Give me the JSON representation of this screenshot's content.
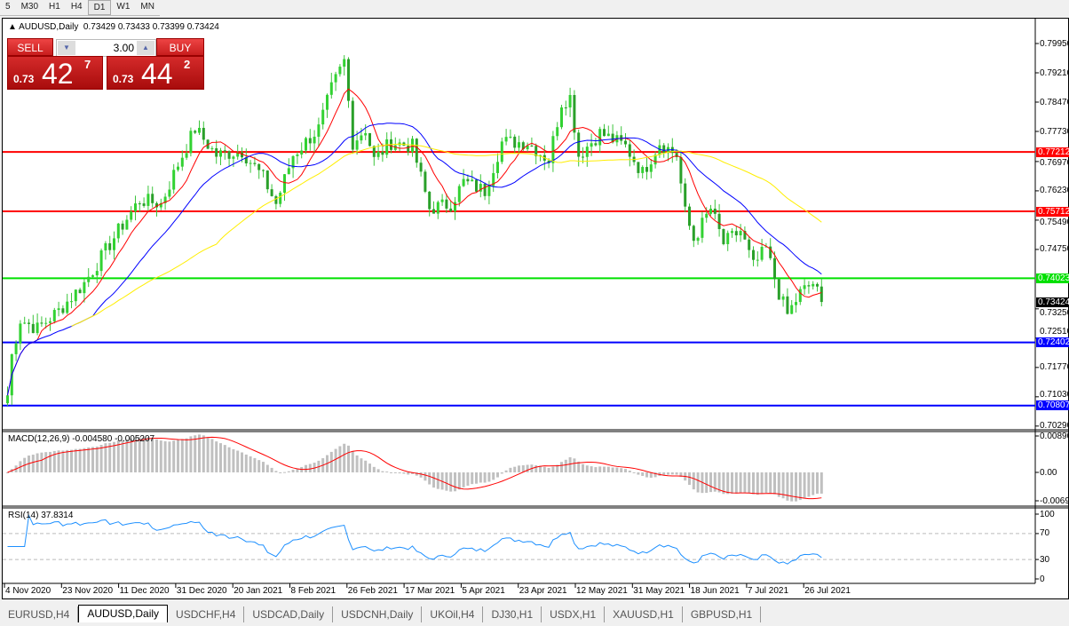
{
  "timeframes": [
    "5",
    "M30",
    "H1",
    "H4",
    "D1",
    "W1",
    "MN"
  ],
  "active_timeframe": "D1",
  "chart": {
    "title": "AUDUSD,Daily",
    "ohlc": "0.73429 0.73433 0.73399 0.73424"
  },
  "trade_panel": {
    "sell_label": "SELL",
    "buy_label": "BUY",
    "lot": "3.00",
    "sell_prefix": "0.73",
    "sell_big": "42",
    "sell_sup": "7",
    "buy_prefix": "0.73",
    "buy_big": "44",
    "buy_sup": "2"
  },
  "price_axis": [
    "0.79950",
    "0.79210",
    "0.78470",
    "0.77730",
    "0.76970",
    "0.76230",
    "0.75490",
    "0.74750",
    "0.73250",
    "0.72510",
    "0.71770",
    "0.71030",
    "0.70290"
  ],
  "hlines": [
    {
      "price": "0.77212",
      "color": "#ff0000"
    },
    {
      "price": "0.75712",
      "color": "#ff0000"
    },
    {
      "price": "0.74023",
      "color": "#00e000"
    },
    {
      "price": "0.72402",
      "color": "#0000ff"
    },
    {
      "price": "0.70807",
      "color": "#0000ff"
    }
  ],
  "current_price": "0.73424",
  "macd": {
    "label": "MACD(12,26,9) -0.004580 -0.005207",
    "axis": [
      "0.00890",
      "0.00",
      "-0.00697"
    ]
  },
  "rsi": {
    "label": "RSI(14) 37.8314",
    "axis": [
      "100",
      "70",
      "30",
      "0"
    ]
  },
  "date_axis": [
    "4 Nov 2020",
    "23 Nov 2020",
    "11 Dec 2020",
    "31 Dec 2020",
    "20 Jan 2021",
    "8 Feb 2021",
    "26 Feb 2021",
    "17 Mar 2021",
    "5 Apr 2021",
    "23 Apr 2021",
    "12 May 2021",
    "31 May 2021",
    "18 Jun 2021",
    "7 Jul 2021",
    "26 Jul 2021"
  ],
  "tabs": [
    "EURUSD,H4",
    "AUDUSD,Daily",
    "USDCHF,H4",
    "USDCAD,Daily",
    "USDCNH,Daily",
    "UKOil,H4",
    "DJ30,H1",
    "USDX,H1",
    "XAUUSD,H1",
    "GBPUSD,H1"
  ],
  "active_tab": "AUDUSD,Daily",
  "chart_data": {
    "type": "candlestick",
    "ylim": [
      0.7029,
      0.7995
    ],
    "close_keypoints": [
      [
        0,
        0.7107
      ],
      [
        1,
        0.7208
      ],
      [
        3,
        0.7298
      ],
      [
        7,
        0.7275
      ],
      [
        12,
        0.732
      ],
      [
        18,
        0.739
      ],
      [
        22,
        0.7455
      ],
      [
        26,
        0.7522
      ],
      [
        31,
        0.76
      ],
      [
        36,
        0.759
      ],
      [
        40,
        0.769
      ],
      [
        44,
        0.778
      ],
      [
        49,
        0.7713
      ],
      [
        55,
        0.7724
      ],
      [
        60,
        0.7656
      ],
      [
        63,
        0.759
      ],
      [
        67,
        0.7713
      ],
      [
        73,
        0.778
      ],
      [
        76,
        0.788
      ],
      [
        79,
        0.795
      ],
      [
        81,
        0.7746
      ],
      [
        84,
        0.778
      ],
      [
        86,
        0.7701
      ],
      [
        90,
        0.7746
      ],
      [
        95,
        0.7735
      ],
      [
        99,
        0.7578
      ],
      [
        104,
        0.759
      ],
      [
        107,
        0.7645
      ],
      [
        112,
        0.7623
      ],
      [
        116,
        0.7746
      ],
      [
        122,
        0.7746
      ],
      [
        127,
        0.7701
      ],
      [
        130,
        0.7847
      ],
      [
        132,
        0.786
      ],
      [
        134,
        0.7713
      ],
      [
        139,
        0.7769
      ],
      [
        145,
        0.7735
      ],
      [
        149,
        0.7668
      ],
      [
        153,
        0.7746
      ],
      [
        157,
        0.7713
      ],
      [
        159,
        0.7567
      ],
      [
        161,
        0.75
      ],
      [
        165,
        0.7578
      ],
      [
        168,
        0.749
      ],
      [
        172,
        0.7522
      ],
      [
        175,
        0.7432
      ],
      [
        178,
        0.7477
      ],
      [
        181,
        0.7365
      ],
      [
        183,
        0.731
      ],
      [
        186,
        0.7365
      ],
      [
        189,
        0.739
      ],
      [
        191,
        0.7342
      ]
    ]
  }
}
